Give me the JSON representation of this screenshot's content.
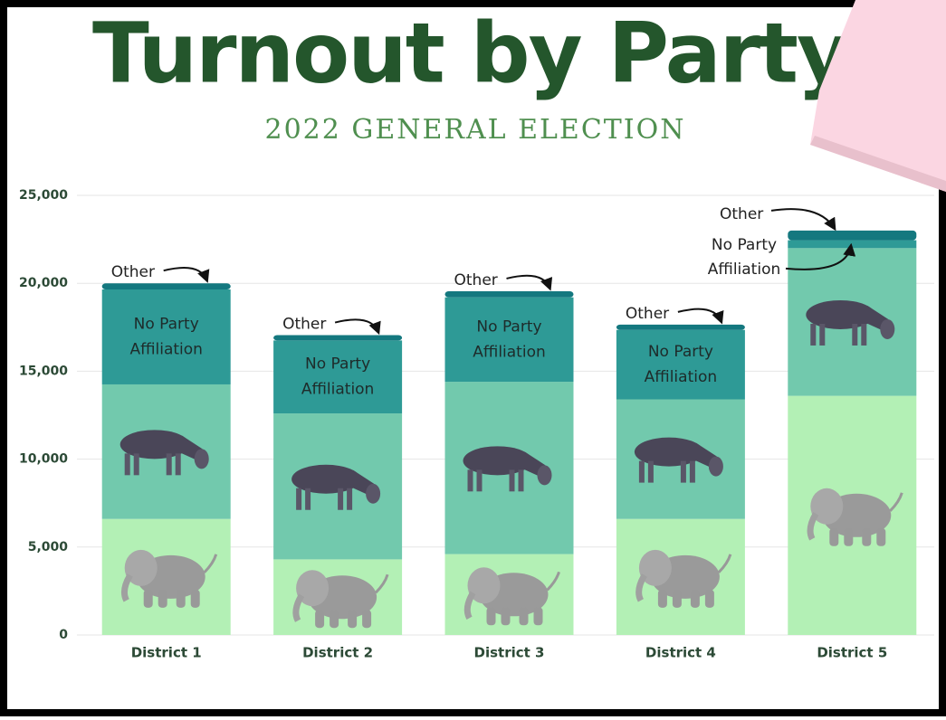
{
  "chart_data": {
    "type": "stacked_bar",
    "title": "Turnout by Party",
    "subtitle": "2022 GENERAL ELECTION",
    "categories": [
      "District 1",
      "District 2",
      "District 3",
      "District 4",
      "District 5"
    ],
    "series": [
      {
        "color": "#b3f0b5",
        "values": [
          6600,
          4300,
          4600,
          6600,
          13600
        ]
      },
      {
        "color": "#72c9ad",
        "values": [
          7650,
          8300,
          9800,
          6800,
          8400
        ]
      },
      {
        "name_lines": [
          "No Party",
          "Affiliation"
        ],
        "color": "#2e9a96",
        "values": [
          5400,
          4150,
          4800,
          3950,
          450
        ]
      },
      {
        "name": "Other",
        "color": "#14787f",
        "values": [
          350,
          300,
          350,
          300,
          550
        ]
      }
    ],
    "ylim": [
      0,
      25000
    ],
    "yticks": [
      0,
      {
        "value": 5000,
        "label": "5,000"
      },
      {
        "value": 10000,
        "label": "10,000"
      },
      {
        "value": 15000,
        "label": "15,000"
      },
      {
        "value": 20000,
        "label": "20,000"
      },
      {
        "value": 25000,
        "label": "25,000"
      }
    ],
    "grid": true
  }
}
